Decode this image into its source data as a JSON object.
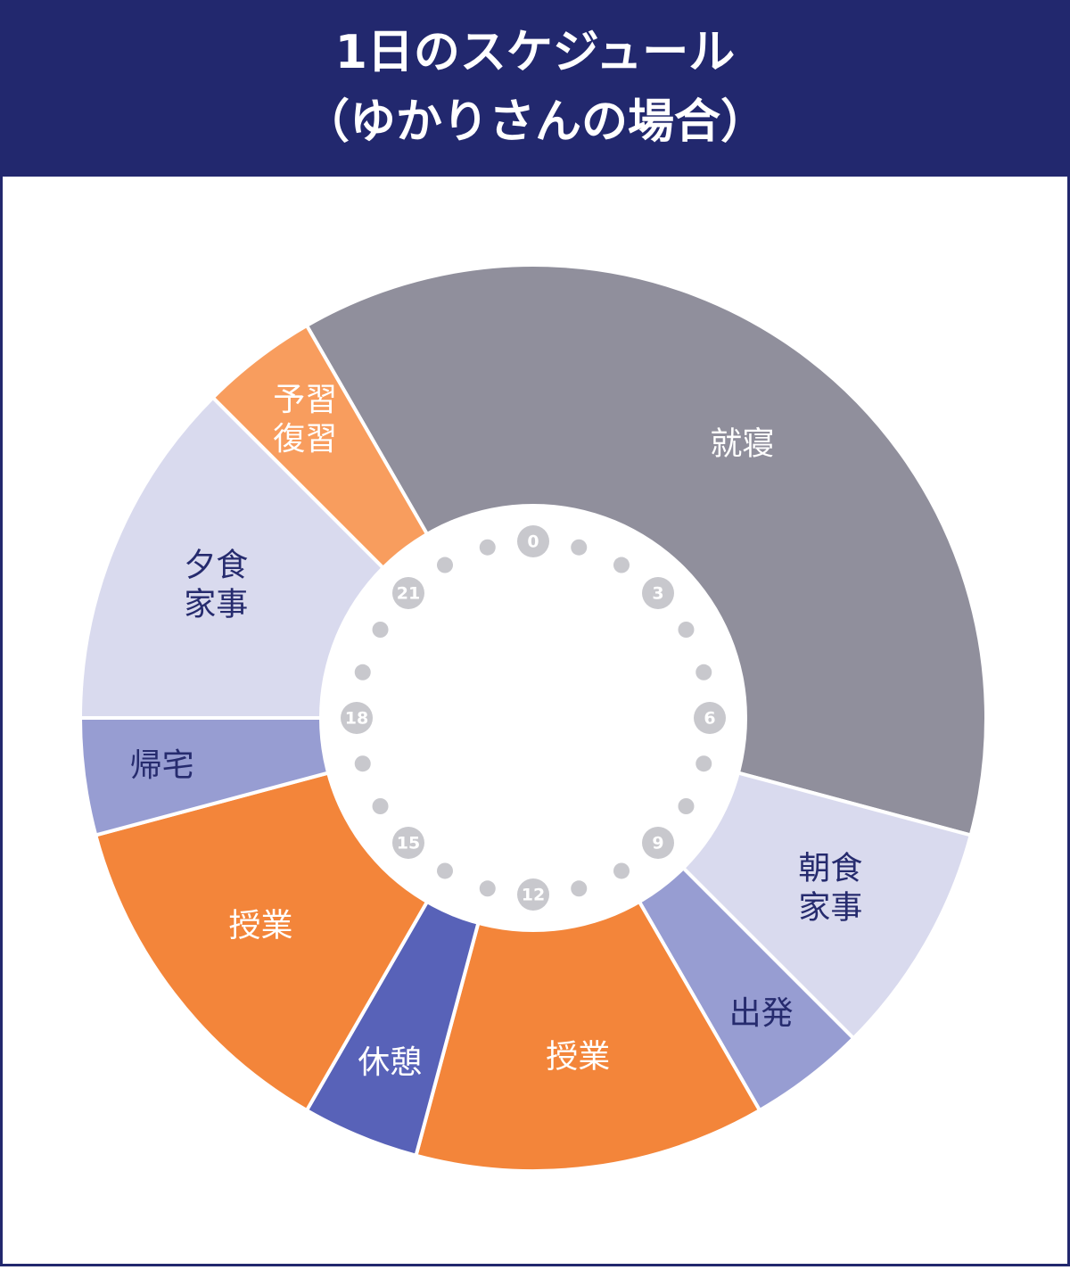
{
  "chart_data": {
    "type": "clock-donut",
    "title": [
      "1日のスケジュール",
      "（ゆかりさんの場合）"
    ],
    "segments": [
      {
        "label": [
          "就寝"
        ],
        "start": 22,
        "end": 7,
        "color": "#908f9c",
        "text_color": "#ffffff"
      },
      {
        "label": [
          "朝食",
          "家事"
        ],
        "start": 7,
        "end": 9,
        "color": "#d9daee",
        "text_color": "#262b6e"
      },
      {
        "label": [
          "出発"
        ],
        "start": 9,
        "end": 10,
        "color": "#979dd2",
        "text_color": "#262b6e"
      },
      {
        "label": [
          "授業"
        ],
        "start": 10,
        "end": 13,
        "color": "#f3853a",
        "text_color": "#ffffff"
      },
      {
        "label": [
          "休憩"
        ],
        "start": 13,
        "end": 14,
        "color": "#5862b8",
        "text_color": "#ffffff"
      },
      {
        "label": [
          "授業"
        ],
        "start": 14,
        "end": 17,
        "color": "#f3853a",
        "text_color": "#ffffff"
      },
      {
        "label": [
          "帰宅"
        ],
        "start": 17,
        "end": 18,
        "color": "#979dd2",
        "text_color": "#262b6e"
      },
      {
        "label": [
          "夕食",
          "家事"
        ],
        "start": 18,
        "end": 21,
        "color": "#d9daee",
        "text_color": "#262b6e"
      },
      {
        "label": [
          "予習",
          "復習"
        ],
        "start": 21,
        "end": 22,
        "color": "#f89d5e",
        "text_color": "#ffffff"
      }
    ],
    "lim": [
      0,
      24
    ],
    "ticks": [
      0,
      3,
      6,
      9,
      12,
      15,
      18,
      21
    ],
    "minor_ticks": [
      1,
      2,
      4,
      5,
      7,
      8,
      10,
      11,
      13,
      14,
      16,
      17,
      19,
      20,
      22,
      23
    ]
  }
}
